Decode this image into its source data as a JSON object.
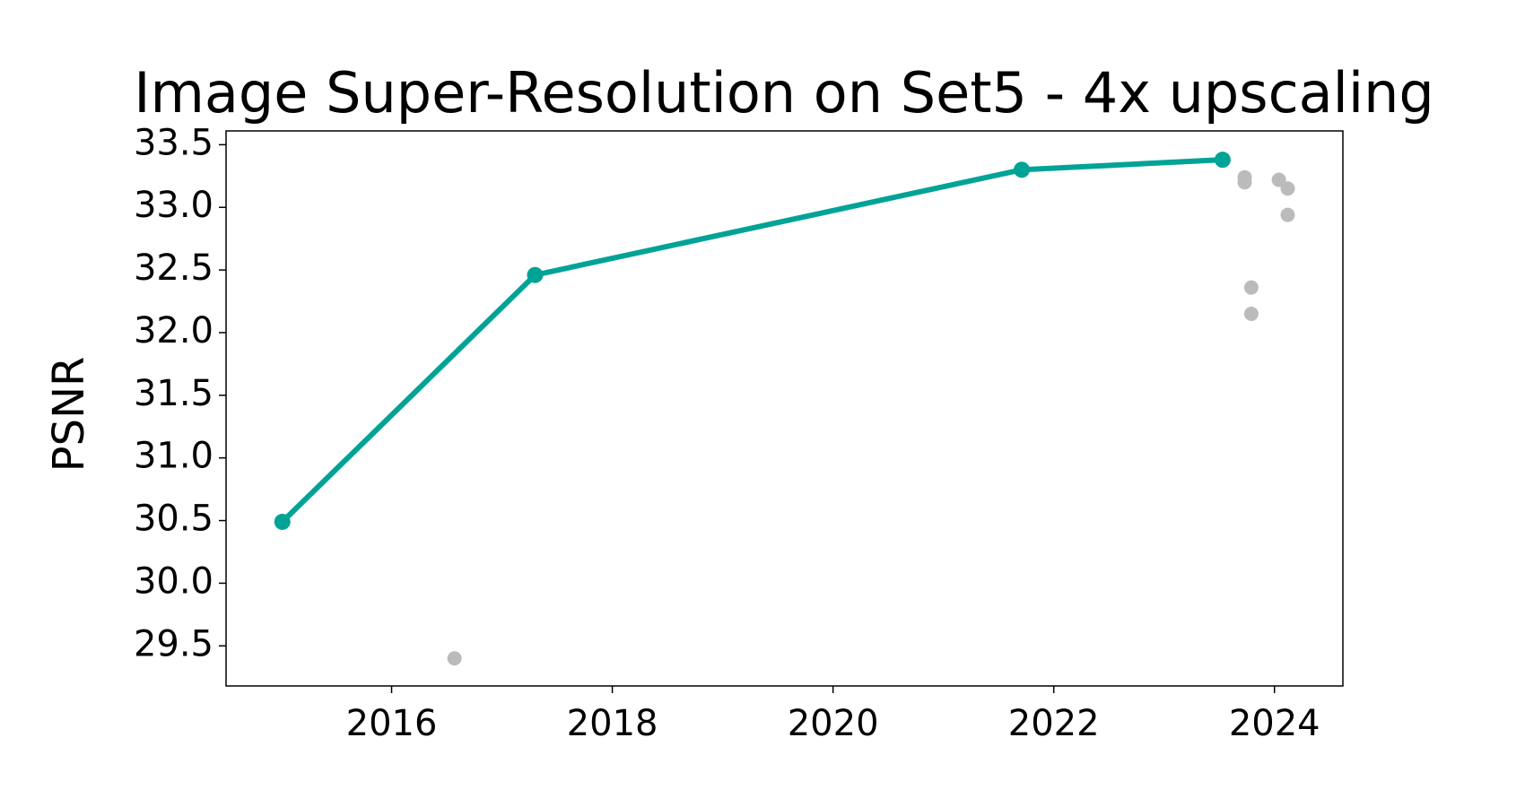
{
  "chart_data": {
    "type": "line",
    "title": "Image Super-Resolution on Set5 - 4x upscaling",
    "ylabel": "PSNR",
    "line": {
      "color": "#00a396",
      "x": [
        2015.01,
        2017.3,
        2021.71,
        2023.53
      ],
      "values": [
        30.49,
        32.46,
        33.3,
        33.38
      ]
    },
    "points": {
      "color": "#bbbbbb",
      "x": [
        2016.57,
        2023.73,
        2023.73,
        2023.79,
        2023.79,
        2024.04,
        2024.12,
        2024.12
      ],
      "values": [
        29.4,
        33.24,
        33.2,
        32.36,
        32.15,
        33.22,
        33.15,
        32.94
      ]
    },
    "xlim": [
      2014.5,
      2024.62
    ],
    "xticks": [
      2016,
      2018,
      2020,
      2022,
      2024
    ],
    "ylim": [
      29.18,
      33.61
    ],
    "yticks": [
      29.5,
      {
        "value": 30,
        "label": "30.0"
      },
      30.5,
      {
        "value": 31,
        "label": "31.0"
      },
      31.5,
      {
        "value": 32,
        "label": "32.0"
      },
      32.5,
      {
        "value": 33,
        "label": "33.0"
      },
      33.5
    ]
  }
}
